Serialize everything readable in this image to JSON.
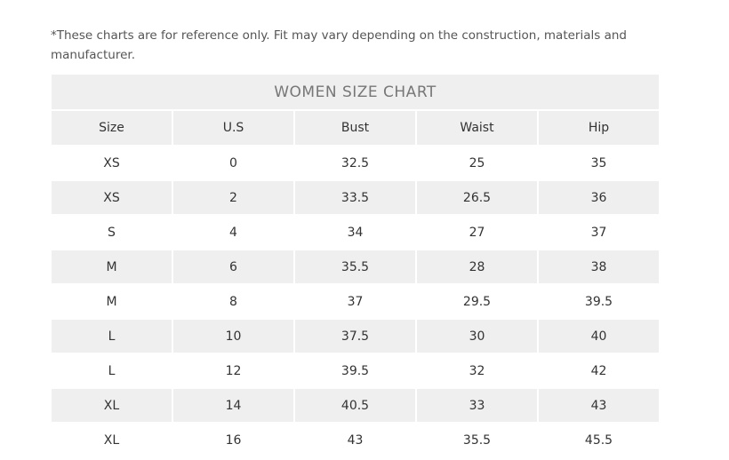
{
  "note": "*These charts are for reference only. Fit may vary depending on the construction, materials and manufacturer.",
  "table": {
    "title": "WOMEN SIZE CHART",
    "headers": [
      "Size",
      "U.S",
      "Bust",
      "Waist",
      "Hip"
    ],
    "rows": [
      [
        "XS",
        "0",
        "32.5",
        "25",
        "35"
      ],
      [
        "XS",
        "2",
        "33.5",
        "26.5",
        "36"
      ],
      [
        "S",
        "4",
        "34",
        "27",
        "37"
      ],
      [
        "M",
        "6",
        "35.5",
        "28",
        "38"
      ],
      [
        "M",
        "8",
        "37",
        "29.5",
        "39.5"
      ],
      [
        "L",
        "10",
        "37.5",
        "30",
        "40"
      ],
      [
        "L",
        "12",
        "39.5",
        "32",
        "42"
      ],
      [
        "XL",
        "14",
        "40.5",
        "33",
        "43"
      ],
      [
        "XL",
        "16",
        "43",
        "35.5",
        "45.5"
      ]
    ]
  }
}
